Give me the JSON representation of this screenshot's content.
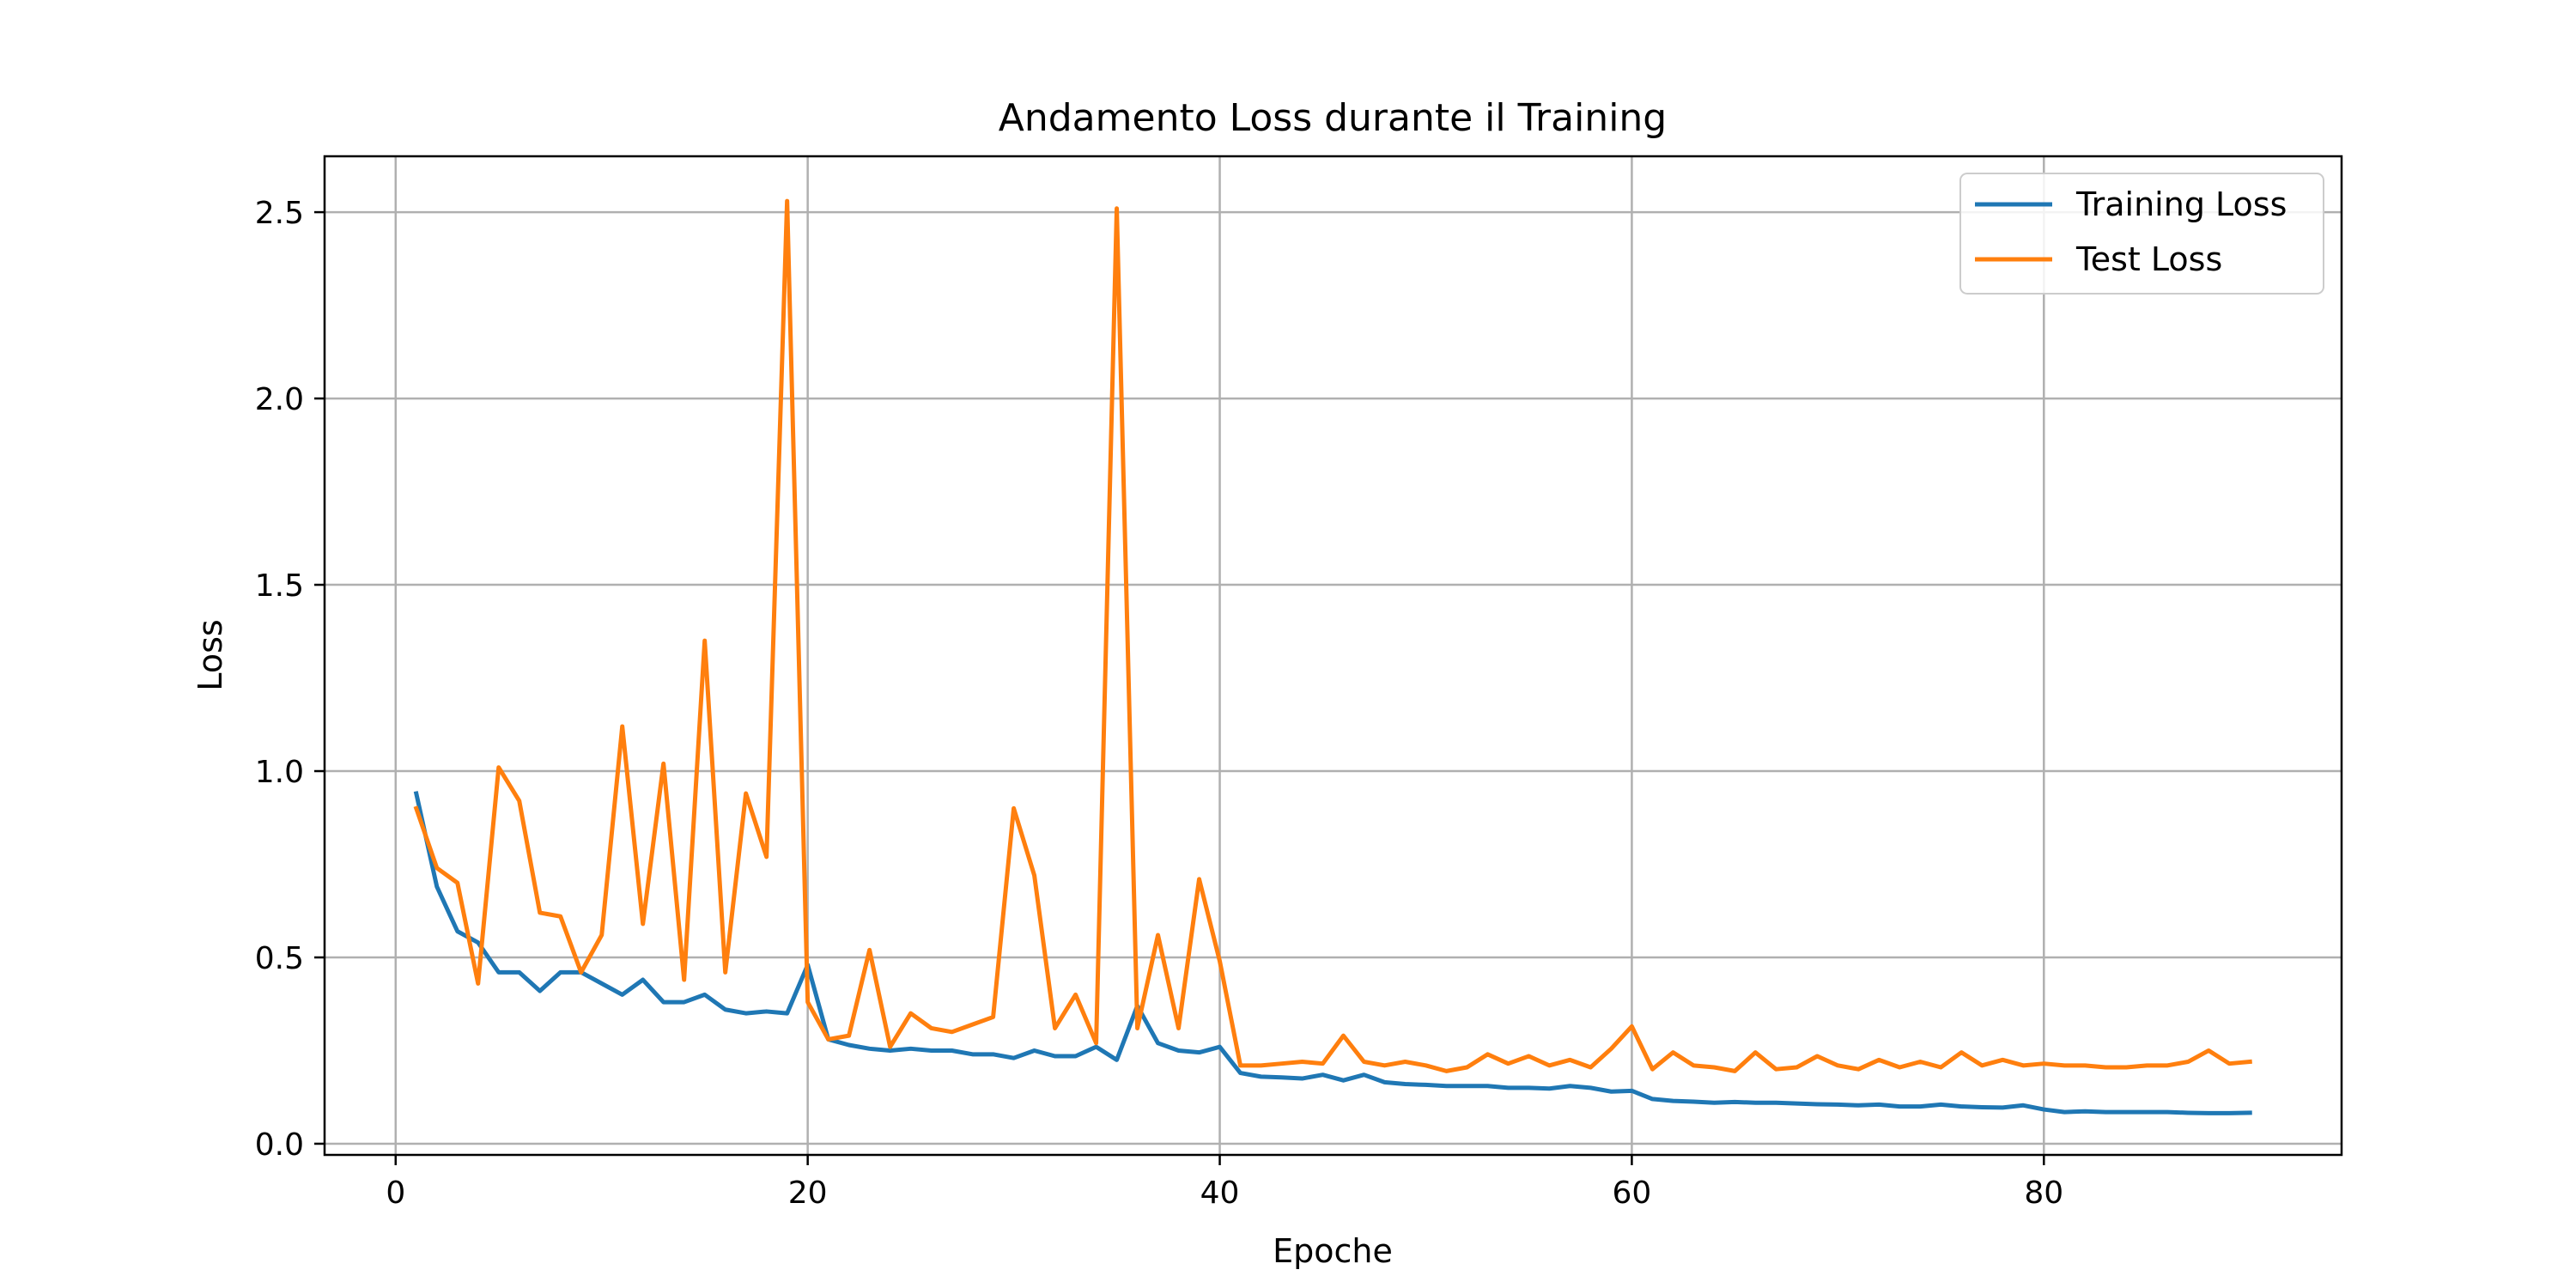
{
  "chart_data": {
    "type": "line",
    "title": "Andamento Loss durante il Training",
    "xlabel": "Epoche",
    "ylabel": "Loss",
    "xlim": [
      -3.45,
      94.45
    ],
    "ylim": [
      -0.03,
      2.65
    ],
    "xticks": [
      0,
      20,
      40,
      60,
      80
    ],
    "yticks": [
      0.0,
      0.5,
      1.0,
      1.5,
      2.0,
      2.5
    ],
    "xtick_labels": [
      "0",
      "20",
      "40",
      "60",
      "80"
    ],
    "ytick_labels": [
      "0.0",
      "0.5",
      "1.0",
      "1.5",
      "2.0",
      "2.5"
    ],
    "grid": true,
    "legend_position": "top-right",
    "x": [
      1,
      2,
      3,
      4,
      5,
      6,
      7,
      8,
      9,
      10,
      11,
      12,
      13,
      14,
      15,
      16,
      17,
      18,
      19,
      20,
      21,
      22,
      23,
      24,
      25,
      26,
      27,
      28,
      29,
      30,
      31,
      32,
      33,
      34,
      35,
      36,
      37,
      38,
      39,
      40,
      41,
      42,
      43,
      44,
      45,
      46,
      47,
      48,
      49,
      50,
      51,
      52,
      53,
      54,
      55,
      56,
      57,
      58,
      59,
      60,
      61,
      62,
      63,
      64,
      65,
      66,
      67,
      68,
      69,
      70,
      71,
      72,
      73,
      74,
      75,
      76,
      77,
      78,
      79,
      80,
      81,
      82,
      83,
      84,
      85,
      86,
      87,
      88,
      89,
      90
    ],
    "series": [
      {
        "name": "Training Loss",
        "color": "#1f77b4",
        "values": [
          0.94,
          0.69,
          0.57,
          0.54,
          0.46,
          0.46,
          0.41,
          0.46,
          0.46,
          0.43,
          0.4,
          0.44,
          0.38,
          0.38,
          0.4,
          0.36,
          0.35,
          0.355,
          0.35,
          0.48,
          0.28,
          0.265,
          0.255,
          0.25,
          0.255,
          0.25,
          0.25,
          0.24,
          0.24,
          0.23,
          0.25,
          0.235,
          0.235,
          0.26,
          0.225,
          0.37,
          0.27,
          0.25,
          0.245,
          0.26,
          0.19,
          0.18,
          0.178,
          0.175,
          0.185,
          0.17,
          0.185,
          0.165,
          0.16,
          0.158,
          0.155,
          0.155,
          0.155,
          0.15,
          0.15,
          0.148,
          0.155,
          0.15,
          0.14,
          0.142,
          0.12,
          0.115,
          0.113,
          0.11,
          0.112,
          0.11,
          0.11,
          0.108,
          0.106,
          0.105,
          0.103,
          0.105,
          0.1,
          0.1,
          0.105,
          0.1,
          0.098,
          0.097,
          0.103,
          0.092,
          0.085,
          0.087,
          0.085,
          0.085,
          0.085,
          0.085,
          0.083,
          0.082,
          0.082,
          0.083
        ]
      },
      {
        "name": "Test Loss",
        "color": "#ff7f0e",
        "values": [
          0.9,
          0.74,
          0.7,
          0.43,
          1.01,
          0.92,
          0.62,
          0.61,
          0.46,
          0.56,
          1.12,
          0.59,
          1.02,
          0.44,
          1.35,
          0.46,
          0.94,
          0.77,
          2.53,
          0.38,
          0.28,
          0.29,
          0.52,
          0.26,
          0.35,
          0.31,
          0.3,
          0.32,
          0.34,
          0.9,
          0.72,
          0.31,
          0.4,
          0.27,
          2.51,
          0.31,
          0.56,
          0.31,
          0.71,
          0.49,
          0.21,
          0.21,
          0.215,
          0.22,
          0.215,
          0.29,
          0.22,
          0.21,
          0.22,
          0.21,
          0.195,
          0.205,
          0.24,
          0.215,
          0.235,
          0.21,
          0.225,
          0.205,
          0.255,
          0.315,
          0.2,
          0.245,
          0.21,
          0.205,
          0.195,
          0.245,
          0.2,
          0.205,
          0.235,
          0.21,
          0.2,
          0.225,
          0.205,
          0.22,
          0.205,
          0.245,
          0.21,
          0.225,
          0.21,
          0.215,
          0.21,
          0.21,
          0.205,
          0.205,
          0.21,
          0.21,
          0.22,
          0.25,
          0.215,
          0.22
        ]
      }
    ]
  }
}
